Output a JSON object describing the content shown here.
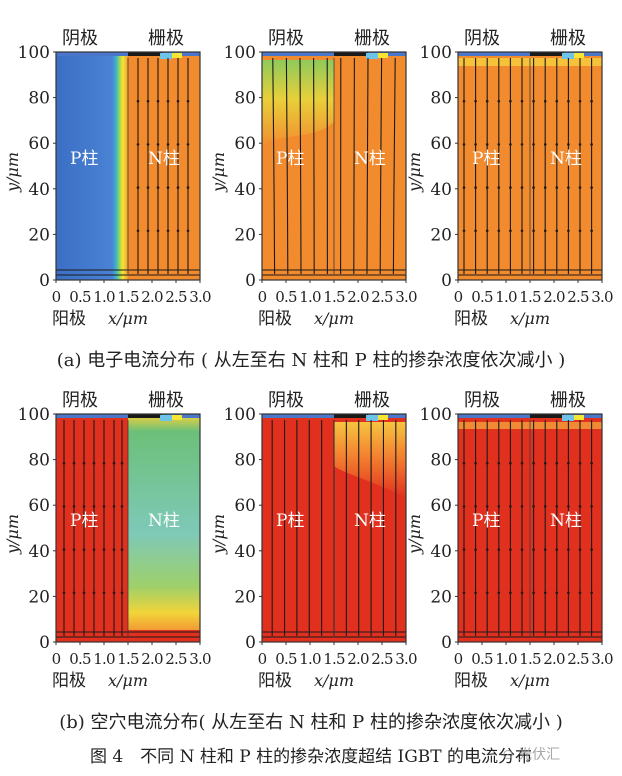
{
  "figure": {
    "title": "图 4　不同 N 柱和 P 柱的掺杂浓度超结 IGBT 的电流分布",
    "watermark": "⊙ 光伏汇",
    "labels": {
      "cathode": "阴极",
      "gate": "栅极",
      "anode": "阳极",
      "xlabel": "x/μm",
      "ylabel": "y/μm",
      "p_pillar": "P柱",
      "n_pillar": "N柱"
    },
    "colors": {
      "blue": "#3f71c6",
      "orange": "#f28a2e",
      "red": "#e2301f",
      "green": "#5fb97c",
      "frame": "#333333",
      "line": "#1b1b1b"
    },
    "rows": [
      {
        "id": "a",
        "caption": "(a) 电子电流分布 ( 从左至右 N 柱和 P 柱的掺杂浓度依次减小 )",
        "panels": [
          {
            "variant": "blue-left"
          },
          {
            "variant": "orange-mid"
          },
          {
            "variant": "orange-flat"
          }
        ]
      },
      {
        "id": "b",
        "caption": "(b) 空穴电流分布( 从左至右 N 柱和 P 柱的掺杂浓度依次减小 )",
        "panels": [
          {
            "variant": "green-right"
          },
          {
            "variant": "red-mid"
          },
          {
            "variant": "red-flat"
          }
        ]
      }
    ]
  },
  "chart_data": [
    {
      "type": "heatmap",
      "panel": "a1",
      "title": "",
      "xlabel": "x/μm",
      "ylabel": "y/μm",
      "xlim": [
        0,
        3.0
      ],
      "ylim": [
        0,
        100
      ],
      "xticks": [
        "0",
        "0.5",
        "1.0",
        "1.5",
        "2.0",
        "2.5",
        "3.0"
      ],
      "yticks": [
        "0",
        "20",
        "40",
        "60",
        "80",
        "100"
      ],
      "annotations": [
        "阴极",
        "栅极",
        "阳极",
        "P柱",
        "N柱"
      ],
      "pillar_boundary_x": 1.5
    },
    {
      "type": "heatmap",
      "panel": "a2",
      "title": "",
      "xlabel": "x/μm",
      "ylabel": "y/μm",
      "xlim": [
        0,
        3.0
      ],
      "ylim": [
        0,
        100
      ],
      "xticks": [
        "0",
        "0.5",
        "1.0",
        "1.5",
        "2.0",
        "2.5",
        "3.0"
      ],
      "yticks": [
        "0",
        "20",
        "40",
        "60",
        "80",
        "100"
      ],
      "annotations": [
        "阴极",
        "栅极",
        "阳极",
        "P柱",
        "N柱"
      ],
      "pillar_boundary_x": 1.5
    },
    {
      "type": "heatmap",
      "panel": "a3",
      "title": "",
      "xlabel": "x/μm",
      "ylabel": "y/μm",
      "xlim": [
        0,
        3.0
      ],
      "ylim": [
        0,
        100
      ],
      "xticks": [
        "0",
        "0.5",
        "1.0",
        "1.5",
        "2.0",
        "2.5",
        "3.0"
      ],
      "yticks": [
        "0",
        "20",
        "40",
        "60",
        "80",
        "100"
      ],
      "annotations": [
        "阴极",
        "栅极",
        "阳极",
        "P柱",
        "N柱"
      ],
      "pillar_boundary_x": 1.5
    },
    {
      "type": "heatmap",
      "panel": "b1",
      "title": "",
      "xlabel": "x/μm",
      "ylabel": "y/μm",
      "xlim": [
        0,
        3.0
      ],
      "ylim": [
        0,
        100
      ],
      "xticks": [
        "0",
        "0.5",
        "1.0",
        "1.5",
        "2.0",
        "2.5",
        "3.0"
      ],
      "yticks": [
        "0",
        "20",
        "40",
        "60",
        "80",
        "100"
      ],
      "annotations": [
        "阴极",
        "栅极",
        "阳极",
        "P柱",
        "N柱"
      ],
      "pillar_boundary_x": 1.5
    },
    {
      "type": "heatmap",
      "panel": "b2",
      "title": "",
      "xlabel": "x/μm",
      "ylabel": "y/μm",
      "xlim": [
        0,
        3.0
      ],
      "ylim": [
        0,
        100
      ],
      "xticks": [
        "0",
        "0.5",
        "1.0",
        "1.5",
        "2.0",
        "2.5",
        "3.0"
      ],
      "yticks": [
        "0",
        "20",
        "40",
        "60",
        "80",
        "100"
      ],
      "annotations": [
        "阴极",
        "栅极",
        "阳极",
        "P柱",
        "N柱"
      ],
      "pillar_boundary_x": 1.5
    },
    {
      "type": "heatmap",
      "panel": "b3",
      "title": "",
      "xlabel": "x/μm",
      "ylabel": "y/μm",
      "xlim": [
        0,
        3.0
      ],
      "ylim": [
        0,
        100
      ],
      "xticks": [
        "0",
        "0.5",
        "1.0",
        "1.5",
        "2.0",
        "2.5",
        "3.0"
      ],
      "yticks": [
        "0",
        "20",
        "40",
        "60",
        "80",
        "100"
      ],
      "annotations": [
        "阴极",
        "栅极",
        "阳极",
        "P柱",
        "N柱"
      ],
      "pillar_boundary_x": 1.5
    }
  ]
}
